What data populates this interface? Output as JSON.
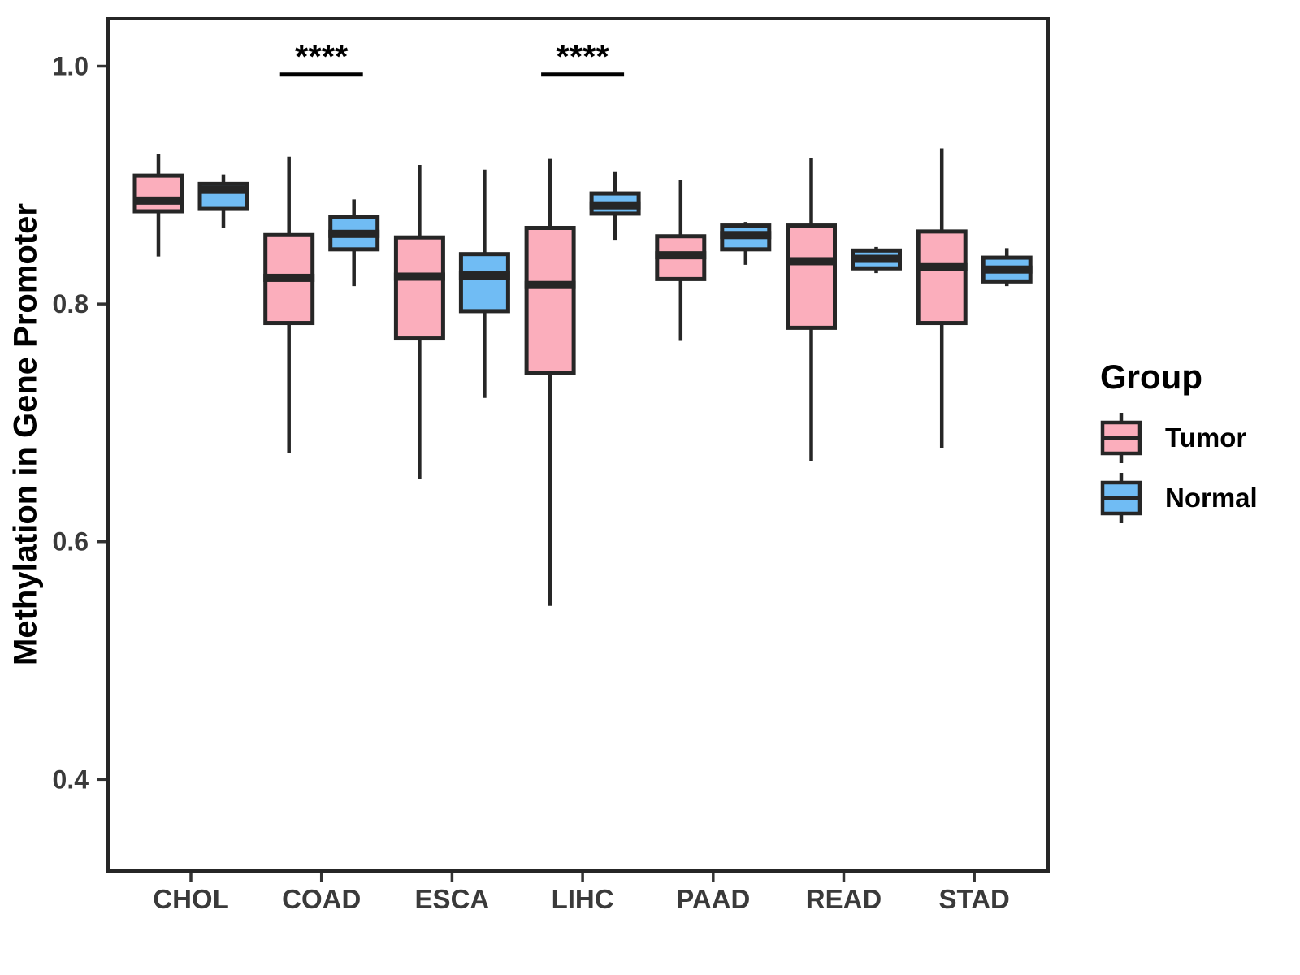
{
  "y_axis": {
    "label": "Methylation in Gene Promoter",
    "ticks": [
      {
        "label": "1.0",
        "value": 1.0
      },
      {
        "label": "0.8",
        "value": 0.8
      },
      {
        "label": "0.6",
        "value": 0.6
      },
      {
        "label": "0.4",
        "value": 0.4
      }
    ]
  },
  "x_axis": {
    "categories": [
      "CHOL",
      "COAD",
      "ESCA",
      "LIHC",
      "PAAD",
      "READ",
      "STAD"
    ]
  },
  "legend": {
    "title": "Group",
    "items": [
      {
        "label": "Tumor",
        "color": "#FBAEBC"
      },
      {
        "label": "Normal",
        "color": "#70BCF4"
      }
    ]
  },
  "style": {
    "box_stroke": "#262626",
    "panel_border": "#262626",
    "axis_text_color": "#3A3A3A",
    "tick_mark_color": "#333333",
    "annotation_color": "#000000",
    "background": "#FFFFFF"
  },
  "chart_data": {
    "type": "boxplot",
    "title": "",
    "xlabel": "",
    "ylabel": "Methylation in Gene Promoter",
    "ylim": [
      0.323,
      1.04
    ],
    "grid": false,
    "legend_position": "right",
    "categories": [
      "CHOL",
      "COAD",
      "ESCA",
      "LIHC",
      "PAAD",
      "READ",
      "STAD"
    ],
    "groups": [
      "Tumor",
      "Normal"
    ],
    "series": [
      {
        "name": "Tumor",
        "color": "#FBAEBC",
        "boxes": [
          {
            "category": "CHOL",
            "min": 0.84,
            "q1": 0.878,
            "median": 0.887,
            "q3": 0.908,
            "max": 0.926
          },
          {
            "category": "COAD",
            "min": 0.675,
            "q1": 0.784,
            "median": 0.822,
            "q3": 0.858,
            "max": 0.924
          },
          {
            "category": "ESCA",
            "min": 0.653,
            "q1": 0.771,
            "median": 0.823,
            "q3": 0.856,
            "max": 0.917
          },
          {
            "category": "LIHC",
            "min": 0.546,
            "q1": 0.742,
            "median": 0.816,
            "q3": 0.864,
            "max": 0.922
          },
          {
            "category": "PAAD",
            "min": 0.769,
            "q1": 0.821,
            "median": 0.841,
            "q3": 0.857,
            "max": 0.904
          },
          {
            "category": "READ",
            "min": 0.668,
            "q1": 0.78,
            "median": 0.836,
            "q3": 0.866,
            "max": 0.923
          },
          {
            "category": "STAD",
            "min": 0.679,
            "q1": 0.784,
            "median": 0.831,
            "q3": 0.861,
            "max": 0.931
          }
        ]
      },
      {
        "name": "Normal",
        "color": "#70BCF4",
        "boxes": [
          {
            "category": "CHOL",
            "min": 0.864,
            "q1": 0.88,
            "median": 0.896,
            "q3": 0.901,
            "max": 0.909
          },
          {
            "category": "COAD",
            "min": 0.815,
            "q1": 0.846,
            "median": 0.859,
            "q3": 0.873,
            "max": 0.888
          },
          {
            "category": "ESCA",
            "min": 0.721,
            "q1": 0.794,
            "median": 0.824,
            "q3": 0.842,
            "max": 0.913
          },
          {
            "category": "LIHC",
            "min": 0.854,
            "q1": 0.876,
            "median": 0.883,
            "q3": 0.893,
            "max": 0.911
          },
          {
            "category": "PAAD",
            "min": 0.833,
            "q1": 0.846,
            "median": 0.858,
            "q3": 0.866,
            "max": 0.869
          },
          {
            "category": "READ",
            "min": 0.826,
            "q1": 0.83,
            "median": 0.838,
            "q3": 0.845,
            "max": 0.848
          },
          {
            "category": "STAD",
            "min": 0.815,
            "q1": 0.819,
            "median": 0.829,
            "q3": 0.839,
            "max": 0.847
          }
        ]
      }
    ],
    "annotations": [
      {
        "category": "COAD",
        "text": "****",
        "line_y": 0.993
      },
      {
        "category": "LIHC",
        "text": "****",
        "line_y": 0.993
      }
    ]
  }
}
